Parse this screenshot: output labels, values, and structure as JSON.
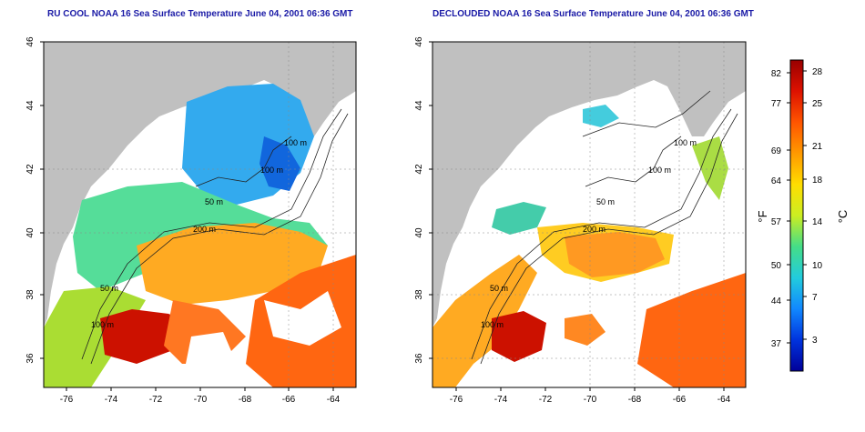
{
  "left_map": {
    "title": "RU COOL NOAA 16 Sea Surface Temperature June 04, 2001 06:36 GMT",
    "contour_labels": [
      "100 m",
      "100 m",
      "50 m",
      "200 m",
      "50 m",
      "100 m"
    ]
  },
  "right_map": {
    "title": "DECLOUDED NOAA 16 Sea Surface Temperature June 04, 2001 06:36 GMT",
    "contour_labels": [
      "100 m",
      "100 m",
      "50 m",
      "200 m",
      "50 m",
      "100 m"
    ]
  },
  "axes": {
    "x_ticks": [
      "-76",
      "-74",
      "-72",
      "-70",
      "-68",
      "-66",
      "-64"
    ],
    "y_ticks": [
      "46",
      "44",
      "42",
      "40",
      "38",
      "36"
    ]
  },
  "colorbar": {
    "fahrenheit_unit": "°F",
    "celsius_unit": "°C",
    "fahrenheit_ticks": [
      "82",
      "77",
      "69",
      "64",
      "57",
      "50",
      "44",
      "37"
    ],
    "celsius_ticks": [
      "28",
      "25",
      "21",
      "18",
      "14",
      "10",
      "7",
      "3"
    ],
    "colors": [
      "#990000",
      "#dd1100",
      "#ff5500",
      "#ff9900",
      "#ffdd00",
      "#ccee22",
      "#44dd88",
      "#22ccdd",
      "#1188ff",
      "#0033dd",
      "#000099"
    ]
  },
  "colors": {
    "land": "#c0c0c0",
    "title": "#1a1aa6"
  }
}
